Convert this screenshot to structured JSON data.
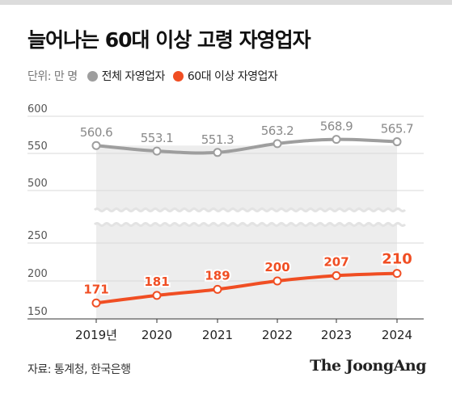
{
  "title": "늘어나는 60대 이상 고령 자영업자",
  "legend": {
    "unit": "단위: 만 명",
    "items": [
      {
        "label": "전체 자영업자",
        "color": "#9e9e9e"
      },
      {
        "label": "60대 이상 자영업자",
        "color": "#f04e23"
      }
    ]
  },
  "chart_data": {
    "type": "line",
    "categories": [
      "2019년",
      "2020",
      "2021",
      "2022",
      "2023",
      "2024"
    ],
    "series": [
      {
        "name": "전체 자영업자",
        "values": [
          560.6,
          553.1,
          551.3,
          563.2,
          568.9,
          565.7
        ],
        "color": "#9e9e9e",
        "labels": [
          "560.6",
          "553.1",
          "551.3",
          "563.2",
          "568.9",
          "565.7"
        ]
      },
      {
        "name": "60대 이상 자영업자",
        "values": [
          171,
          181,
          189,
          200,
          207,
          210
        ],
        "color": "#f04e23",
        "labels": [
          "171",
          "181",
          "189",
          "200",
          "207",
          "210"
        ]
      }
    ],
    "y_ticks_upper": [
      "600",
      "550",
      "500"
    ],
    "y_ticks_lower": [
      "250",
      "200",
      "150"
    ],
    "upper_ylim": [
      500,
      600
    ],
    "lower_ylim": [
      150,
      250
    ],
    "axis_break": true,
    "grid": true
  },
  "footer": {
    "source": "자료: 통계청, 한국은행",
    "brand": "The JoongAng"
  }
}
